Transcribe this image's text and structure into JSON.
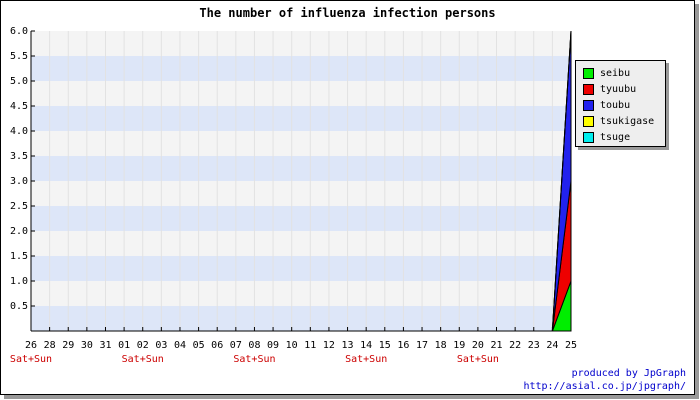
{
  "chart_data": {
    "type": "area",
    "title": "The number of influenza infection persons",
    "xlabel": "",
    "ylabel": "",
    "ylim": [
      0,
      6.0
    ],
    "yticks": [
      "0.5",
      "1.0",
      "1.5",
      "2.0",
      "2.5",
      "3.0",
      "3.5",
      "4.0",
      "4.5",
      "5.0",
      "5.5",
      "6.0"
    ],
    "categories": [
      "26",
      "28",
      "29",
      "30",
      "31",
      "01",
      "02",
      "03",
      "04",
      "05",
      "06",
      "07",
      "08",
      "09",
      "10",
      "11",
      "12",
      "13",
      "14",
      "15",
      "16",
      "17",
      "18",
      "19",
      "20",
      "21",
      "22",
      "23",
      "24",
      "25"
    ],
    "weekend_labels": [
      {
        "index": 0,
        "text": "Sat+Sun"
      },
      {
        "index": 6,
        "text": "Sat+Sun"
      },
      {
        "index": 12,
        "text": "Sat+Sun"
      },
      {
        "index": 18,
        "text": "Sat+Sun"
      },
      {
        "index": 24,
        "text": "Sat+Sun"
      }
    ],
    "x": [
      23,
      24,
      25
    ],
    "series": [
      {
        "name": "seibu",
        "color": "#00ee00",
        "values": [
          0,
          0,
          1
        ]
      },
      {
        "name": "tyuubu",
        "color": "#ee0000",
        "values": [
          0,
          0,
          2
        ]
      },
      {
        "name": "toubu",
        "color": "#2222ee",
        "values": [
          0,
          0,
          3
        ]
      },
      {
        "name": "tsukigase",
        "color": "#ffff00",
        "values": [
          0,
          0,
          0
        ]
      },
      {
        "name": "tsuge",
        "color": "#00eeee",
        "values": [
          0,
          0,
          0
        ]
      }
    ],
    "grid": true,
    "legend_position": "right"
  },
  "credits": {
    "line1": "produced by JpGraph",
    "line2": "http://asial.co.jp/jpgraph/"
  }
}
